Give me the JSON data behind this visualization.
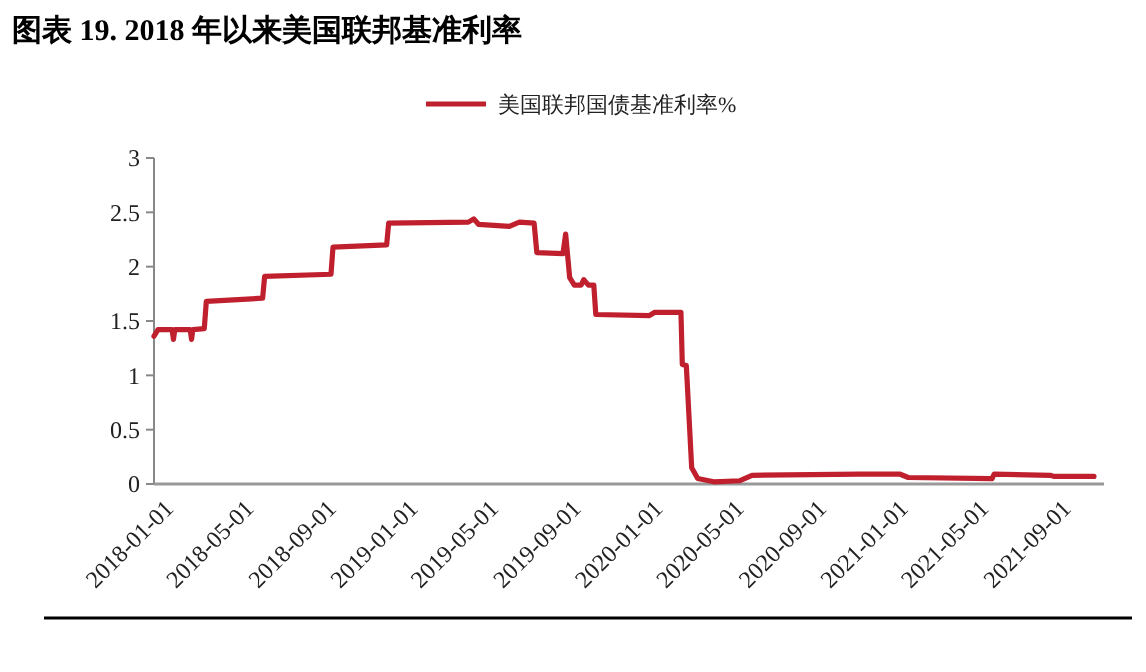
{
  "chart_data": {
    "type": "line",
    "title": "图表 19. 2018 年以来美国联邦基准利率",
    "legend": "top",
    "grid": false,
    "marker": "none",
    "line_style": "solid",
    "xlim": [
      "2017-12-22",
      "2021-11-08"
    ],
    "xticks": [
      "2018-01-01",
      "2018-05-01",
      "2018-09-01",
      "2019-01-01",
      "2019-05-01",
      "2019-09-01",
      "2020-01-01",
      "2020-05-01",
      "2020-09-01",
      "2021-01-01",
      "2021-05-01",
      "2021-09-01"
    ],
    "ylim": [
      0,
      3
    ],
    "yticks": [
      0,
      0.5,
      1,
      1.5,
      2,
      2.5,
      3
    ],
    "x": [
      "2017-12-22",
      "2017-12-28",
      "2018-01-18",
      "2018-01-20",
      "2018-01-22",
      "2018-02-14",
      "2018-02-16",
      "2018-02-18",
      "2018-03-07",
      "2018-03-10",
      "2018-06-02",
      "2018-06-05",
      "2018-09-12",
      "2018-09-15",
      "2018-12-04",
      "2018-12-07",
      "2019-04-05",
      "2019-04-13",
      "2019-04-20",
      "2019-06-05",
      "2019-06-20",
      "2019-07-12",
      "2019-07-16",
      "2019-08-24",
      "2019-08-28",
      "2019-09-03",
      "2019-09-10",
      "2019-09-20",
      "2019-09-24",
      "2019-10-01",
      "2019-10-09",
      "2019-10-12",
      "2019-12-31",
      "2020-01-08",
      "2020-02-16",
      "2020-02-18",
      "2020-02-24",
      "2020-03-03",
      "2020-03-12",
      "2020-04-05",
      "2020-05-14",
      "2020-06-01",
      "2020-11-09",
      "2021-01-08",
      "2021-01-20",
      "2021-05-25",
      "2021-05-28",
      "2021-08-20",
      "2021-08-25",
      "2021-10-24"
    ],
    "series": [
      {
        "name": "美国联邦国债基准利率%",
        "color": "#c0202e",
        "values": [
          1.36,
          1.42,
          1.42,
          1.33,
          1.42,
          1.42,
          1.33,
          1.42,
          1.43,
          1.68,
          1.71,
          1.91,
          1.93,
          2.18,
          2.2,
          2.4,
          2.41,
          2.44,
          2.39,
          2.37,
          2.41,
          2.4,
          2.13,
          2.12,
          2.3,
          1.9,
          1.83,
          1.83,
          1.88,
          1.83,
          1.83,
          1.56,
          1.55,
          1.58,
          1.58,
          1.1,
          1.09,
          0.15,
          0.05,
          0.02,
          0.03,
          0.08,
          0.09,
          0.09,
          0.06,
          0.05,
          0.09,
          0.08,
          0.07,
          0.07
        ]
      }
    ]
  }
}
